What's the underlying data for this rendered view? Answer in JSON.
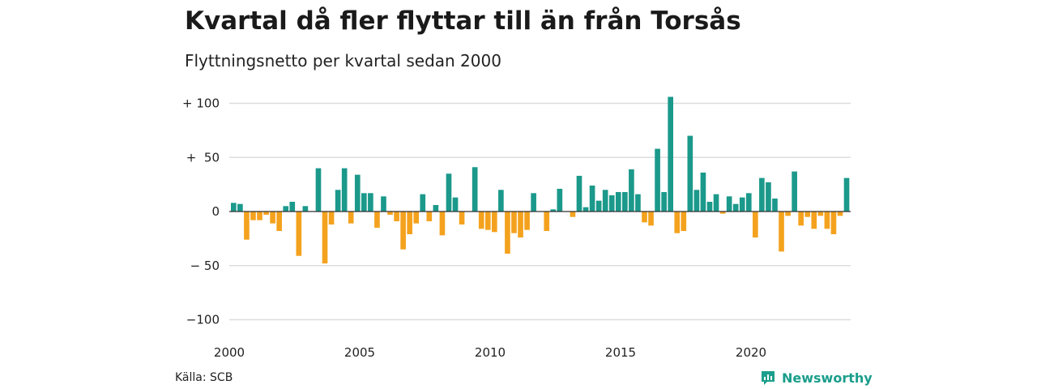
{
  "title": "Kvartal då fler flyttar till än från Torsås",
  "subtitle": "Flyttningsnetto per kvartal sedan 2000",
  "source": "Källa: SCB",
  "brand": "Newsworthy",
  "brand_icon": "newsworthy-logo-icon",
  "colors": {
    "positive": "#1b998b",
    "negative": "#f4a21e",
    "grid": "#dddddd",
    "zero": "#333333"
  },
  "chart_data": {
    "type": "bar",
    "title": "Kvartal då fler flyttar till än från Torsås",
    "subtitle": "Flyttningsnetto per kvartal sedan 2000",
    "xlabel": "",
    "ylabel": "",
    "ylim": [
      -100,
      110
    ],
    "grid": true,
    "y_ticks": [
      {
        "value": 100,
        "label": "+ 100"
      },
      {
        "value": 50,
        "label": "+  50"
      },
      {
        "value": 0,
        "label": "0"
      },
      {
        "value": -50,
        "label": "− 50"
      },
      {
        "value": -100,
        "label": "−100"
      }
    ],
    "x_ticks": [
      {
        "value": 2000,
        "label": "2000"
      },
      {
        "value": 2005,
        "label": "2005"
      },
      {
        "value": 2010,
        "label": "2010"
      },
      {
        "value": 2015,
        "label": "2015"
      },
      {
        "value": 2020,
        "label": "2020"
      }
    ],
    "start_year": 2000,
    "start_quarter": 1,
    "values": [
      8,
      7,
      -26,
      -8,
      -8,
      -3,
      -11,
      -18,
      5,
      9,
      -41,
      5,
      0,
      40,
      -48,
      -12,
      20,
      40,
      -11,
      34,
      17,
      17,
      -15,
      14,
      -3,
      -9,
      -35,
      -21,
      -11,
      16,
      -9,
      6,
      -22,
      35,
      13,
      -12,
      0,
      41,
      -16,
      -17,
      -19,
      20,
      -39,
      -20,
      -24,
      -17,
      17,
      0,
      -18,
      2,
      21,
      0,
      -5,
      33,
      4,
      24,
      10,
      20,
      15,
      18,
      18,
      39,
      16,
      -10,
      -13,
      58,
      18,
      106,
      -20,
      -18,
      70,
      20,
      36,
      9,
      16,
      -2,
      14,
      7,
      13,
      17,
      -24,
      31,
      27,
      12,
      -37,
      -4,
      37,
      -13,
      -5,
      -16,
      -4,
      -16,
      -21,
      -4,
      31
    ]
  }
}
